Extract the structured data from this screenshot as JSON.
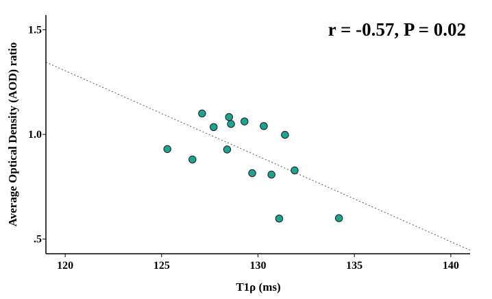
{
  "chart_data": {
    "type": "scatter",
    "title": "",
    "xlabel": "T1ρ (ms)",
    "ylabel": "Average Optical Density (AOD) ratio",
    "xlim": [
      119,
      141
    ],
    "ylim": [
      0.43,
      1.57
    ],
    "x_ticks": [
      120,
      125,
      130,
      135,
      140
    ],
    "y_ticks": [
      0.5,
      1.0,
      1.5
    ],
    "y_tick_labels": [
      ".5",
      "1.0",
      "1.5"
    ],
    "annotation": "r = -0.57, P = 0.02",
    "grid": false,
    "point_color": "#1aa593",
    "point_edge_color": "#1a1a1a",
    "fit_line": {
      "style": "dotted",
      "color": "#555555",
      "x": [
        119,
        141
      ],
      "y": [
        1.345,
        0.447
      ]
    },
    "points": [
      {
        "x": 125.3,
        "y": 0.93
      },
      {
        "x": 126.6,
        "y": 0.88
      },
      {
        "x": 127.1,
        "y": 1.1
      },
      {
        "x": 127.7,
        "y": 1.035
      },
      {
        "x": 128.4,
        "y": 0.928
      },
      {
        "x": 128.5,
        "y": 1.083
      },
      {
        "x": 128.6,
        "y": 1.05
      },
      {
        "x": 129.3,
        "y": 1.062
      },
      {
        "x": 129.7,
        "y": 0.815
      },
      {
        "x": 130.3,
        "y": 1.04
      },
      {
        "x": 130.7,
        "y": 0.808
      },
      {
        "x": 131.1,
        "y": 0.598
      },
      {
        "x": 131.4,
        "y": 0.998
      },
      {
        "x": 131.9,
        "y": 0.828
      },
      {
        "x": 134.2,
        "y": 0.6
      }
    ]
  }
}
